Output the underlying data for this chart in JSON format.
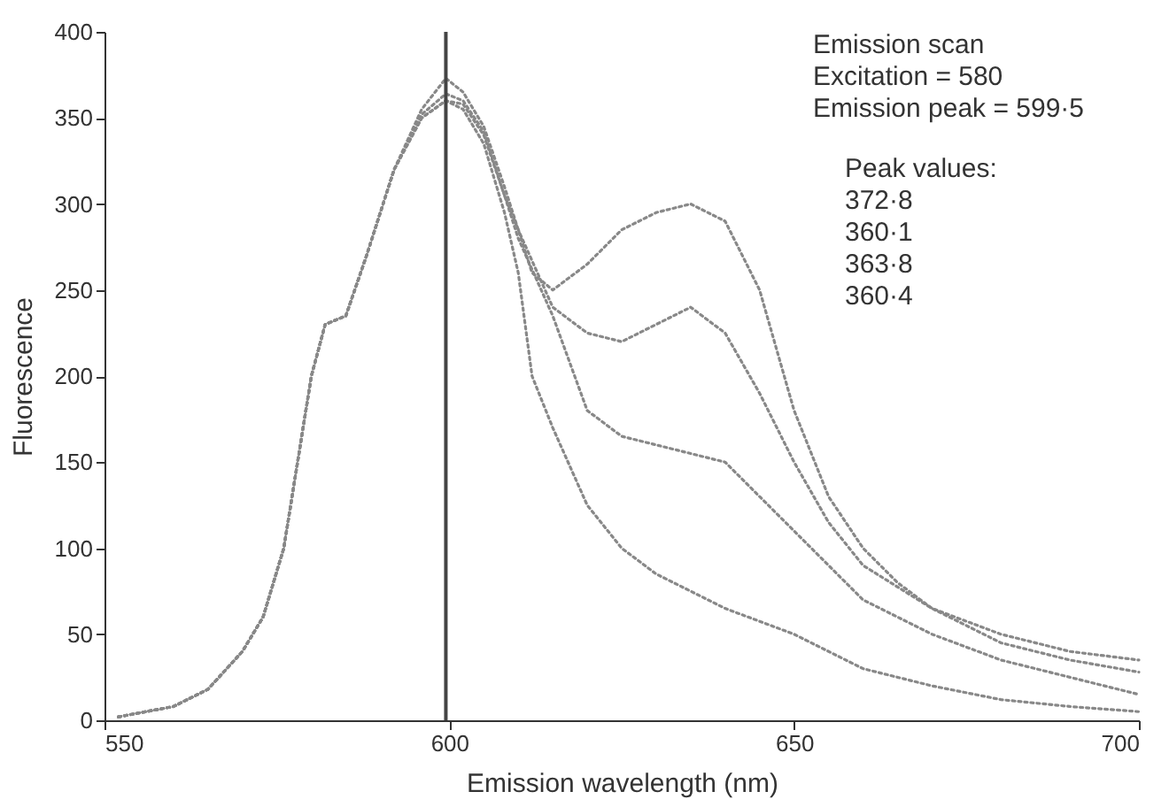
{
  "chart_data": {
    "type": "line",
    "xlabel": "Emission wavelength (nm)",
    "ylabel": "Fluorescence",
    "xlim": [
      550,
      700
    ],
    "ylim": [
      0,
      400
    ],
    "xticks": [
      550,
      600,
      650,
      700
    ],
    "yticks": [
      0,
      50,
      100,
      150,
      200,
      250,
      300,
      350,
      400
    ],
    "grid": false,
    "line_style": "dotted",
    "annotations": [
      "Emission scan",
      "Excitation = 580",
      "Emission peak = 599·5",
      "Peak values:",
      "372·8",
      "360·1",
      "363·8",
      "360·4"
    ],
    "ref_lines": [
      {
        "axis": "x",
        "value": 599.5,
        "color": "#444444",
        "line_style": "solid"
      }
    ],
    "series": [
      {
        "color": "#888888",
        "x": [
          552,
          560,
          565,
          570,
          573,
          576,
          578,
          580,
          582,
          585,
          588,
          592,
          596,
          599.5,
          602,
          605,
          608,
          610,
          612,
          615,
          620,
          625,
          630,
          635,
          640,
          645,
          650,
          655,
          660,
          665,
          670,
          680,
          690,
          700
        ],
        "values": [
          2,
          8,
          18,
          40,
          60,
          100,
          150,
          200,
          230,
          235,
          270,
          320,
          355,
          373,
          365,
          345,
          310,
          285,
          260,
          250,
          265,
          285,
          295,
          300,
          290,
          250,
          180,
          130,
          100,
          80,
          65,
          50,
          40,
          35
        ]
      },
      {
        "color": "#888888",
        "x": [
          552,
          560,
          565,
          570,
          573,
          576,
          578,
          580,
          582,
          585,
          588,
          592,
          596,
          599.5,
          602,
          605,
          608,
          610,
          615,
          620,
          625,
          630,
          635,
          640,
          645,
          650,
          655,
          660,
          670,
          680,
          690,
          700
        ],
        "values": [
          2,
          8,
          18,
          40,
          60,
          100,
          150,
          200,
          230,
          235,
          270,
          320,
          350,
          360,
          358,
          340,
          305,
          285,
          240,
          225,
          220,
          230,
          240,
          225,
          190,
          150,
          115,
          90,
          65,
          45,
          35,
          28
        ]
      },
      {
        "color": "#888888",
        "x": [
          552,
          560,
          565,
          570,
          573,
          576,
          578,
          580,
          582,
          585,
          588,
          592,
          596,
          599.5,
          602,
          605,
          608,
          610,
          615,
          620,
          625,
          630,
          635,
          640,
          645,
          650,
          655,
          660,
          670,
          680,
          690,
          700
        ],
        "values": [
          2,
          8,
          18,
          40,
          60,
          100,
          150,
          200,
          230,
          235,
          270,
          320,
          352,
          364,
          360,
          342,
          305,
          280,
          235,
          180,
          165,
          160,
          155,
          150,
          130,
          110,
          90,
          70,
          50,
          35,
          25,
          15
        ]
      },
      {
        "color": "#888888",
        "x": [
          552,
          560,
          565,
          570,
          573,
          576,
          578,
          580,
          582,
          585,
          588,
          592,
          596,
          599.5,
          602,
          605,
          608,
          610,
          612,
          615,
          620,
          625,
          630,
          640,
          650,
          660,
          670,
          680,
          690,
          700
        ],
        "values": [
          2,
          8,
          18,
          40,
          60,
          100,
          150,
          200,
          230,
          235,
          270,
          320,
          350,
          360,
          355,
          335,
          295,
          260,
          200,
          170,
          125,
          100,
          85,
          65,
          50,
          30,
          20,
          12,
          8,
          5
        ]
      }
    ]
  }
}
